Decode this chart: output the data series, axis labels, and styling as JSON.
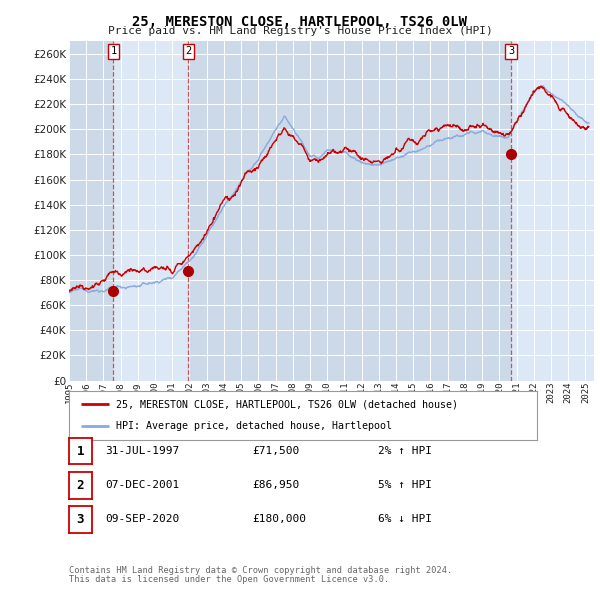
{
  "title": "25, MERESTON CLOSE, HARTLEPOOL, TS26 0LW",
  "subtitle": "Price paid vs. HM Land Registry's House Price Index (HPI)",
  "xlim": [
    1995.0,
    2025.5
  ],
  "ylim": [
    0,
    270000
  ],
  "yticks": [
    0,
    20000,
    40000,
    60000,
    80000,
    100000,
    120000,
    140000,
    160000,
    180000,
    200000,
    220000,
    240000,
    260000
  ],
  "ytick_labels": [
    "£0",
    "£20K",
    "£40K",
    "£60K",
    "£80K",
    "£100K",
    "£120K",
    "£140K",
    "£160K",
    "£180K",
    "£200K",
    "£220K",
    "£240K",
    "£260K"
  ],
  "xtick_years": [
    1995,
    1996,
    1997,
    1998,
    1999,
    2000,
    2001,
    2002,
    2003,
    2004,
    2005,
    2006,
    2007,
    2008,
    2009,
    2010,
    2011,
    2012,
    2013,
    2014,
    2015,
    2016,
    2017,
    2018,
    2019,
    2020,
    2021,
    2022,
    2023,
    2024,
    2025
  ],
  "sale_color": "#cc0000",
  "hpi_color": "#88aadd",
  "plot_bg": "#ccd9e8",
  "shade_color": "#dce8f5",
  "grid_color": "#ffffff",
  "marker_color": "#aa0000",
  "vline_color": "#cc4444",
  "transactions": [
    {
      "num": 1,
      "date_x": 1997.58,
      "price": 71500,
      "label": "1",
      "pct": "2%",
      "dir": "↑",
      "date_str": "31-JUL-1997"
    },
    {
      "num": 2,
      "date_x": 2001.93,
      "price": 86950,
      "label": "2",
      "pct": "5%",
      "dir": "↑",
      "date_str": "07-DEC-2001"
    },
    {
      "num": 3,
      "date_x": 2020.68,
      "price": 180000,
      "label": "3",
      "pct": "6%",
      "dir": "↓",
      "date_str": "09-SEP-2020"
    }
  ],
  "legend_label_red": "25, MERESTON CLOSE, HARTLEPOOL, TS26 0LW (detached house)",
  "legend_label_blue": "HPI: Average price, detached house, Hartlepool",
  "footer1": "Contains HM Land Registry data © Crown copyright and database right 2024.",
  "footer2": "This data is licensed under the Open Government Licence v3.0."
}
